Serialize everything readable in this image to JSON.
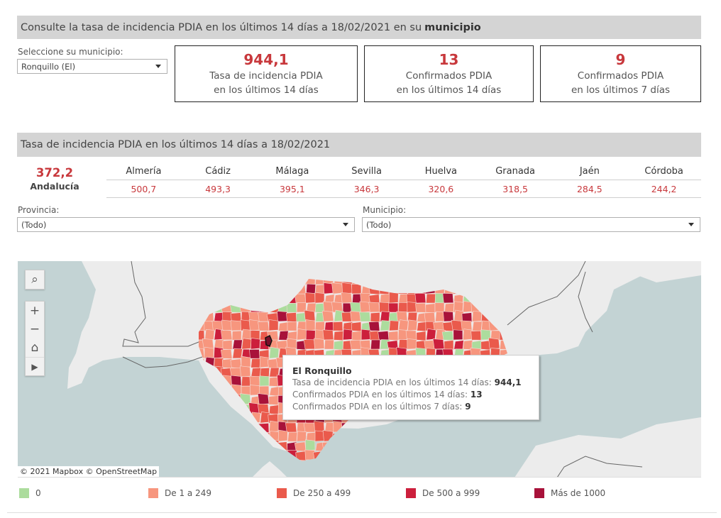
{
  "header": {
    "title_prefix": "Consulte la tasa de incidencia PDIA en los últimos 14 días a 18/02/2021 en su",
    "title_bold": "municipio"
  },
  "municipio_selector": {
    "label": "Seleccione su municipio:",
    "value": "Ronquillo (El)"
  },
  "kpis": [
    {
      "value": "944,1",
      "line1": "Tasa de incidencia PDIA",
      "line2": "en los últimos 14 días"
    },
    {
      "value": "13",
      "line1": "Confirmados PDIA",
      "line2": "en los últimos 14 días"
    },
    {
      "value": "9",
      "line1": "Confirmados PDIA",
      "line2": "en los últimos 7 días"
    }
  ],
  "section2": {
    "title": "Tasa de incidencia PDIA en los últimos 14 días a 18/02/2021"
  },
  "andalucia": {
    "value": "372,2",
    "name": "Andalucía"
  },
  "provinces": [
    {
      "name": "Almería",
      "value": "500,7"
    },
    {
      "name": "Cádiz",
      "value": "493,3"
    },
    {
      "name": "Málaga",
      "value": "395,1"
    },
    {
      "name": "Sevilla",
      "value": "346,3"
    },
    {
      "name": "Huelva",
      "value": "320,6"
    },
    {
      "name": "Granada",
      "value": "318,5"
    },
    {
      "name": "Jaén",
      "value": "284,5"
    },
    {
      "name": "Córdoba",
      "value": "244,2"
    }
  ],
  "filters": {
    "provincia": {
      "label": "Provincia:",
      "value": "(Todo)"
    },
    "municipio": {
      "label": "Municipio:",
      "value": "(Todo)"
    }
  },
  "map": {
    "attribution": "© 2021 Mapbox  © OpenStreetMap",
    "controls": [
      "search-icon",
      "zoom-in-icon",
      "zoom-out-icon",
      "home-icon",
      "play-icon"
    ],
    "controls_glyphs": {
      "search": "⌕",
      "zoom_in": "+",
      "zoom_out": "−",
      "home": "⌂",
      "play": "▶"
    },
    "colors": {
      "water": "#c3d3d4",
      "land": "#ececec",
      "border": "#666666"
    },
    "tooltip": {
      "title": "El Ronquillo",
      "lines": [
        {
          "label": "Tasa de incidencia PDIA en los últimos 14 días: ",
          "value": "944,1"
        },
        {
          "label": "Confirmados PDIA en los últimos 14 días: ",
          "value": "13"
        },
        {
          "label": "Confirmados PDIA en los últimos 7 días: ",
          "value": "9"
        }
      ]
    }
  },
  "legend": [
    {
      "label": "0",
      "color": "#acdc9d"
    },
    {
      "label": "De 1 a 249",
      "color": "#f7967e"
    },
    {
      "label": "De 250 a 499",
      "color": "#ea5a4c"
    },
    {
      "label": "De 500 a 999",
      "color": "#cc1f3c"
    },
    {
      "label": "Más de 1000",
      "color": "#a8123a"
    }
  ]
}
